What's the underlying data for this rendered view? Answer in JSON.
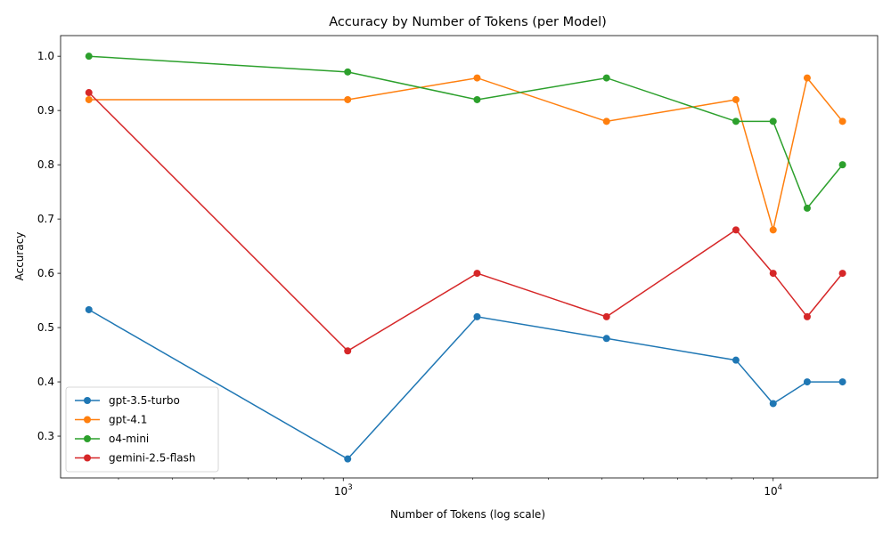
{
  "chart_data": {
    "type": "line",
    "title": "Accuracy by Number of Tokens (per Model)",
    "xlabel": "Number of Tokens (log scale)",
    "ylabel": "Accuracy",
    "x_scale": "log",
    "xlim": [
      220,
      17500
    ],
    "ylim": [
      0.223,
      1.038
    ],
    "x_major_ticks": [
      {
        "value": 1000,
        "base": "10",
        "exp": "3"
      },
      {
        "value": 10000,
        "base": "10",
        "exp": "4"
      }
    ],
    "y_ticks": [
      "0.3",
      "0.4",
      "0.5",
      "0.6",
      "0.7",
      "0.8",
      "0.9",
      "1.0"
    ],
    "grid": false,
    "legend_position": "lower-left",
    "x": [
      256,
      1024,
      2048,
      4096,
      8192,
      10000,
      12000,
      14500
    ],
    "series": [
      {
        "name": "gpt-3.5-turbo",
        "color": "#1f77b4",
        "marker": "circle",
        "values": [
          0.533,
          0.258,
          0.52,
          0.48,
          0.44,
          0.36,
          0.4,
          0.4
        ]
      },
      {
        "name": "gpt-4.1",
        "color": "#ff7f0e",
        "marker": "circle",
        "values": [
          0.92,
          0.92,
          0.96,
          0.88,
          0.92,
          0.68,
          0.96,
          0.88
        ]
      },
      {
        "name": "o4-mini",
        "color": "#2ca02c",
        "marker": "circle",
        "values": [
          1.0,
          0.971,
          0.92,
          0.96,
          0.88,
          0.88,
          0.72,
          0.8
        ]
      },
      {
        "name": "gemini-2.5-flash",
        "color": "#d62728",
        "marker": "circle",
        "values": [
          0.933,
          0.457,
          0.6,
          0.52,
          0.68,
          0.6,
          0.52,
          0.6
        ]
      }
    ]
  }
}
